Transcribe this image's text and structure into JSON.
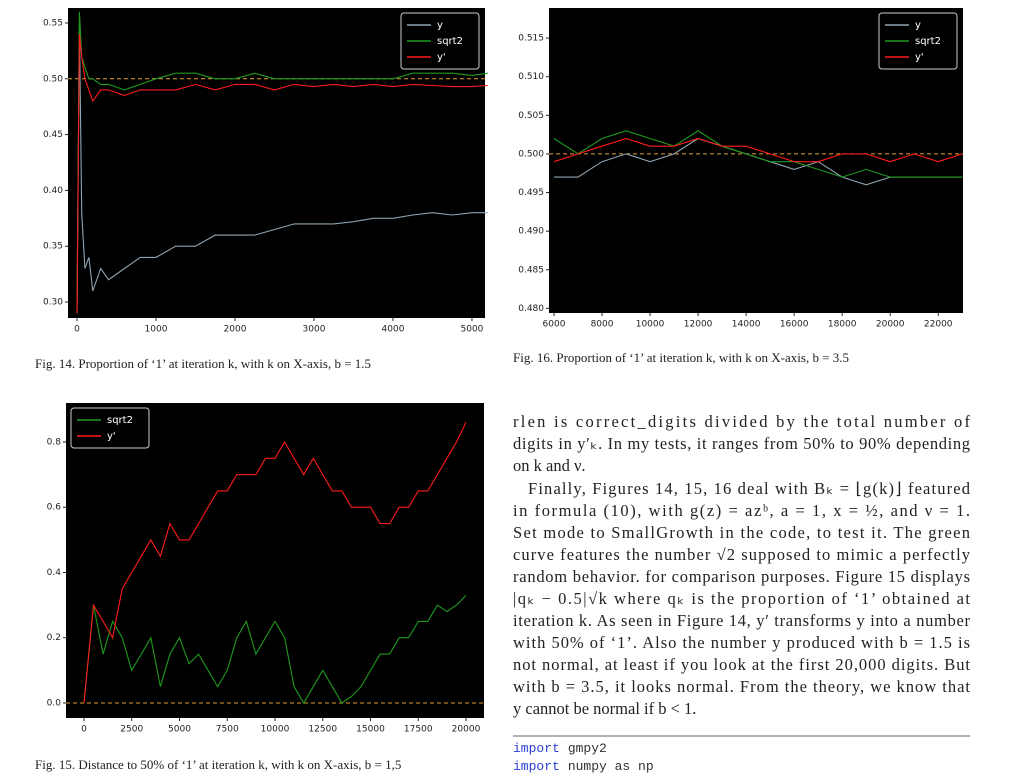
{
  "chart_data": [
    {
      "type": "line",
      "caption": "Fig. 14.  Proportion of ‘1’ at iteration k, with k on X-axis, b = 1.5",
      "x": [
        0,
        30,
        60,
        100,
        150,
        200,
        300,
        400,
        600,
        800,
        1000,
        1250,
        1500,
        1750,
        2000,
        2250,
        2500,
        2750,
        3000,
        3250,
        3500,
        3750,
        4000,
        4250,
        4500,
        4750,
        5000,
        5200
      ],
      "series": [
        {
          "name": "y",
          "color": "#8fa3b0",
          "values": [
            0.29,
            0.55,
            0.38,
            0.33,
            0.34,
            0.31,
            0.33,
            0.32,
            0.33,
            0.34,
            0.34,
            0.35,
            0.35,
            0.36,
            0.36,
            0.36,
            0.365,
            0.37,
            0.37,
            0.37,
            0.372,
            0.375,
            0.375,
            0.378,
            0.38,
            0.378,
            0.38,
            0.38
          ]
        },
        {
          "name": "sqrt2",
          "color": "#1f9a1f",
          "values": [
            0.29,
            0.56,
            0.52,
            0.51,
            0.5,
            0.5,
            0.495,
            0.495,
            0.49,
            0.495,
            0.5,
            0.505,
            0.505,
            0.5,
            0.5,
            0.505,
            0.5,
            0.5,
            0.5,
            0.5,
            0.5,
            0.5,
            0.5,
            0.505,
            0.505,
            0.505,
            0.503,
            0.505
          ]
        },
        {
          "name": "y'",
          "color": "#ff1a1a",
          "values": [
            0.29,
            0.54,
            0.52,
            0.5,
            0.49,
            0.48,
            0.49,
            0.49,
            0.485,
            0.49,
            0.49,
            0.49,
            0.495,
            0.49,
            0.495,
            0.495,
            0.49,
            0.495,
            0.493,
            0.495,
            0.493,
            0.495,
            0.493,
            0.495,
            0.494,
            0.493,
            0.493,
            0.494
          ]
        }
      ],
      "hline": 0.5,
      "hline_color": "#e0a030",
      "xlim": [
        -114,
        5165
      ],
      "ylim": [
        0.2857,
        0.5634
      ],
      "xticks": [
        0,
        1000,
        2000,
        3000,
        4000,
        5000
      ],
      "yticks": [
        {
          "value": 0.3,
          "label": "0.30"
        },
        {
          "value": 0.35,
          "label": "0.35"
        },
        {
          "value": 0.4,
          "label": "0.40"
        },
        {
          "value": 0.45,
          "label": "0.45"
        },
        {
          "value": 0.5,
          "label": "0.50"
        },
        {
          "value": 0.55,
          "label": "0.55"
        }
      ],
      "legend": "upper right"
    },
    {
      "type": "line",
      "caption": "Fig. 16.  Proportion of ‘1’ at iteration k, with k on X-axis, b = 3.5",
      "x": [
        6000,
        7000,
        8000,
        9000,
        10000,
        11000,
        12000,
        13000,
        14000,
        15000,
        16000,
        17000,
        18000,
        19000,
        20000,
        21000,
        22000,
        23000
      ],
      "series": [
        {
          "name": "y",
          "color": "#8fa3b0",
          "values": [
            0.497,
            0.497,
            0.499,
            0.5,
            0.499,
            0.5,
            0.502,
            0.501,
            0.5,
            0.499,
            0.498,
            0.499,
            0.497,
            0.496,
            0.497,
            0.497,
            0.497,
            0.497
          ]
        },
        {
          "name": "sqrt2",
          "color": "#1f9a1f",
          "values": [
            0.502,
            0.5,
            0.502,
            0.503,
            0.502,
            0.501,
            0.503,
            0.501,
            0.5,
            0.499,
            0.499,
            0.498,
            0.497,
            0.498,
            0.497,
            0.497,
            0.497,
            0.497
          ]
        },
        {
          "name": "y'",
          "color": "#ff1a1a",
          "values": [
            0.499,
            0.5,
            0.501,
            0.502,
            0.501,
            0.501,
            0.502,
            0.501,
            0.501,
            0.5,
            0.499,
            0.499,
            0.5,
            0.5,
            0.499,
            0.5,
            0.499,
            0.5
          ]
        }
      ],
      "hline": 0.5,
      "hline_color": "#e0a030",
      "xlim": [
        5792,
        23031
      ],
      "ylim": [
        0.4794,
        0.5189
      ],
      "xticks": [
        6000,
        8000,
        10000,
        12000,
        14000,
        16000,
        18000,
        20000,
        22000
      ],
      "yticks": [
        {
          "value": 0.48,
          "label": "0.480"
        },
        {
          "value": 0.485,
          "label": "0.485"
        },
        {
          "value": 0.49,
          "label": "0.490"
        },
        {
          "value": 0.495,
          "label": "0.495"
        },
        {
          "value": 0.5,
          "label": "0.500"
        },
        {
          "value": 0.505,
          "label": "0.505"
        },
        {
          "value": 0.51,
          "label": "0.510"
        },
        {
          "value": 0.515,
          "label": "0.515"
        }
      ],
      "legend": "upper right"
    },
    {
      "type": "line",
      "caption": "Fig. 15.  Distance to 50% of ‘1’ at iteration k, with k on X-axis, b = 1,5",
      "x": [
        0,
        500,
        1000,
        1500,
        2000,
        2500,
        3000,
        3500,
        4000,
        4500,
        5000,
        5500,
        6000,
        6500,
        7000,
        7500,
        8000,
        8500,
        9000,
        9500,
        10000,
        10500,
        11000,
        11500,
        12000,
        12500,
        13000,
        13500,
        14000,
        14500,
        15000,
        15500,
        16000,
        16500,
        17000,
        17500,
        18000,
        18500,
        19000,
        19500,
        20000
      ],
      "series": [
        {
          "name": "sqrt2",
          "color": "#1f9a1f",
          "values": [
            0,
            0.3,
            0.15,
            0.25,
            0.2,
            0.1,
            0.15,
            0.2,
            0.05,
            0.15,
            0.2,
            0.12,
            0.15,
            0.1,
            0.05,
            0.1,
            0.2,
            0.25,
            0.15,
            0.2,
            0.25,
            0.2,
            0.05,
            0,
            0.05,
            0.1,
            0.05,
            0,
            0.02,
            0.05,
            0.1,
            0.15,
            0.15,
            0.2,
            0.2,
            0.25,
            0.25,
            0.3,
            0.28,
            0.3,
            0.33
          ]
        },
        {
          "name": "y'",
          "color": "#ff1a1a",
          "values": [
            0,
            0.3,
            0.25,
            0.2,
            0.35,
            0.4,
            0.45,
            0.5,
            0.45,
            0.55,
            0.5,
            0.5,
            0.55,
            0.6,
            0.65,
            0.65,
            0.7,
            0.7,
            0.7,
            0.75,
            0.75,
            0.8,
            0.75,
            0.7,
            0.75,
            0.7,
            0.65,
            0.65,
            0.6,
            0.6,
            0.6,
            0.55,
            0.55,
            0.6,
            0.6,
            0.65,
            0.65,
            0.7,
            0.75,
            0.8,
            0.86
          ]
        }
      ],
      "hline": 0,
      "hline_color": "#e0a030",
      "xlim": [
        -942,
        20942
      ],
      "ylim": [
        -0.046,
        0.9195
      ],
      "xticks": [
        0,
        2500,
        5000,
        7500,
        10000,
        12500,
        15000,
        17500,
        20000
      ],
      "yticks": [
        {
          "value": 0,
          "label": "0.0"
        },
        {
          "value": 0.2,
          "label": "0.2"
        },
        {
          "value": 0.4,
          "label": "0.4"
        },
        {
          "value": 0.6,
          "label": "0.6"
        },
        {
          "value": 0.8,
          "label": "0.8"
        }
      ],
      "legend": "upper left"
    }
  ],
  "text": [
    [
      "rlen is correct_digits divided by the total number of",
      "digits in y′ₖ. In my tests, it ranges from 50% to 90% depending",
      "on k and ν."
    ],
    [
      "Finally, Figures 14, 15, 16 deal with Bₖ = ⌊g(k)⌋ featured",
      "in formula (10), with g(z) = azᵇ, a = 1, x = ½, and ν = 1.",
      "Set mode to SmallGrowth in the code, to test it. The green",
      "curve features the number √2 supposed to mimic a perfectly",
      "random behavior. for comparison purposes. Figure 15 displays",
      "|qₖ − 0.5|√k where qₖ is the proportion of ‘1’ obtained at",
      "iteration k. As seen in Figure 14, y′ transforms y into a number",
      "with 50% of ‘1’. Also the number y produced with b = 1.5 is",
      "not normal, at least if you look at the first 20,000 digits. But",
      "with b = 3.5, it looks normal. From the theory, we know that",
      "y cannot be normal if b < 1."
    ]
  ],
  "code": [
    {
      "keyword": "import",
      "rest": "gmpy2"
    },
    {
      "keyword": "import",
      "rest": "numpy as np"
    }
  ]
}
